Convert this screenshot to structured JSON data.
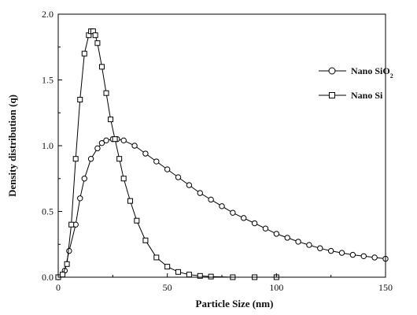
{
  "chart_data": {
    "type": "scatter",
    "title": "",
    "xlabel": "Particle Size (nm)",
    "ylabel": "Density distribution (q)",
    "xlim": [
      0,
      150
    ],
    "ylim": [
      0,
      2.0
    ],
    "xticks": [
      "0",
      "50",
      "100",
      "150"
    ],
    "yticks": [
      "0.0",
      "0.5",
      "1.0",
      "1.5",
      "2.0"
    ],
    "grid": false,
    "legend_position": "top-right",
    "series": [
      {
        "name": "Nano SiO",
        "name_subscript": "2",
        "marker": "circle",
        "color": "#000000",
        "x": [
          0,
          3,
          5,
          8,
          10,
          12,
          15,
          18,
          20,
          22,
          25,
          27,
          30,
          35,
          40,
          45,
          50,
          55,
          60,
          65,
          70,
          75,
          80,
          85,
          90,
          95,
          100,
          105,
          110,
          115,
          120,
          125,
          130,
          135,
          140,
          145,
          150
        ],
        "y": [
          0.0,
          0.05,
          0.2,
          0.4,
          0.6,
          0.75,
          0.9,
          0.98,
          1.02,
          1.04,
          1.05,
          1.05,
          1.04,
          1.0,
          0.94,
          0.88,
          0.82,
          0.76,
          0.7,
          0.64,
          0.59,
          0.54,
          0.49,
          0.45,
          0.41,
          0.37,
          0.33,
          0.3,
          0.27,
          0.245,
          0.22,
          0.2,
          0.185,
          0.17,
          0.16,
          0.15,
          0.14
        ]
      },
      {
        "name": "Nano Si",
        "marker": "square",
        "color": "#000000",
        "x": [
          0,
          2,
          4,
          6,
          8,
          10,
          12,
          14,
          15,
          16,
          17,
          18,
          20,
          22,
          24,
          26,
          28,
          30,
          33,
          36,
          40,
          45,
          50,
          55,
          60,
          65,
          70,
          80,
          90,
          100
        ],
        "y": [
          0.0,
          0.02,
          0.1,
          0.4,
          0.9,
          1.35,
          1.7,
          1.84,
          1.87,
          1.87,
          1.84,
          1.78,
          1.6,
          1.4,
          1.2,
          1.05,
          0.9,
          0.75,
          0.58,
          0.43,
          0.28,
          0.15,
          0.08,
          0.04,
          0.02,
          0.01,
          0.005,
          0.0,
          0.0,
          0.0
        ]
      }
    ]
  }
}
